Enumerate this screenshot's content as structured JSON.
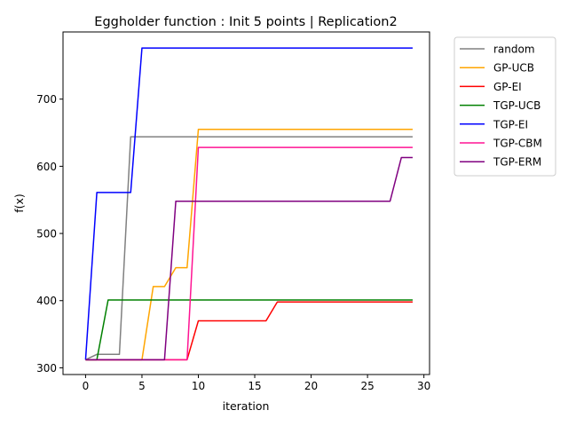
{
  "chart_data": {
    "type": "line",
    "title": "Eggholder function : Init 5 points | Replication2",
    "xlabel": "iteration",
    "ylabel": "f(x)",
    "xlim": [
      -2.0,
      30.5
    ],
    "ylim": [
      290,
      800
    ],
    "xticks": [
      0,
      5,
      10,
      15,
      20,
      25,
      30
    ],
    "yticks": [
      300,
      400,
      500,
      600,
      700
    ],
    "grid": false,
    "legend_position": "outside-top-right",
    "x": [
      0,
      1,
      2,
      3,
      4,
      5,
      6,
      7,
      8,
      9,
      10,
      11,
      12,
      13,
      14,
      15,
      16,
      17,
      18,
      19,
      20,
      21,
      22,
      23,
      24,
      25,
      26,
      27,
      28,
      29
    ],
    "series": [
      {
        "name": "random",
        "color": "#808080",
        "values": [
          312,
          320,
          320,
          320,
          644,
          644,
          644,
          644,
          644,
          644,
          644,
          644,
          644,
          644,
          644,
          644,
          644,
          644,
          644,
          644,
          644,
          644,
          644,
          644,
          644,
          644,
          644,
          644,
          644,
          644
        ]
      },
      {
        "name": "GP-UCB",
        "color": "#ffa500",
        "values": [
          312,
          312,
          312,
          312,
          312,
          312,
          421,
          421,
          449,
          449,
          655,
          655,
          655,
          655,
          655,
          655,
          655,
          655,
          655,
          655,
          655,
          655,
          655,
          655,
          655,
          655,
          655,
          655,
          655,
          655
        ]
      },
      {
        "name": "GP-EI",
        "color": "#ff0000",
        "values": [
          312,
          312,
          312,
          312,
          312,
          312,
          312,
          312,
          312,
          312,
          370,
          370,
          370,
          370,
          370,
          370,
          370,
          398,
          398,
          398,
          398,
          398,
          398,
          398,
          398,
          398,
          398,
          398,
          398,
          398
        ]
      },
      {
        "name": "TGP-UCB",
        "color": "#008000",
        "values": [
          312,
          312,
          401,
          401,
          401,
          401,
          401,
          401,
          401,
          401,
          401,
          401,
          401,
          401,
          401,
          401,
          401,
          401,
          401,
          401,
          401,
          401,
          401,
          401,
          401,
          401,
          401,
          401,
          401,
          401
        ]
      },
      {
        "name": "TGP-EI",
        "color": "#0000ff",
        "values": [
          312,
          561,
          561,
          561,
          561,
          776,
          776,
          776,
          776,
          776,
          776,
          776,
          776,
          776,
          776,
          776,
          776,
          776,
          776,
          776,
          776,
          776,
          776,
          776,
          776,
          776,
          776,
          776,
          776,
          776
        ]
      },
      {
        "name": "TGP-CBM",
        "color": "#ff1493",
        "values": [
          312,
          312,
          312,
          312,
          312,
          312,
          312,
          312,
          312,
          312,
          628,
          628,
          628,
          628,
          628,
          628,
          628,
          628,
          628,
          628,
          628,
          628,
          628,
          628,
          628,
          628,
          628,
          628,
          628,
          628
        ]
      },
      {
        "name": "TGP-ERM",
        "color": "#800080",
        "values": [
          312,
          312,
          312,
          312,
          312,
          312,
          312,
          312,
          548,
          548,
          548,
          548,
          548,
          548,
          548,
          548,
          548,
          548,
          548,
          548,
          548,
          548,
          548,
          548,
          548,
          548,
          548,
          548,
          613,
          613
        ]
      }
    ]
  }
}
